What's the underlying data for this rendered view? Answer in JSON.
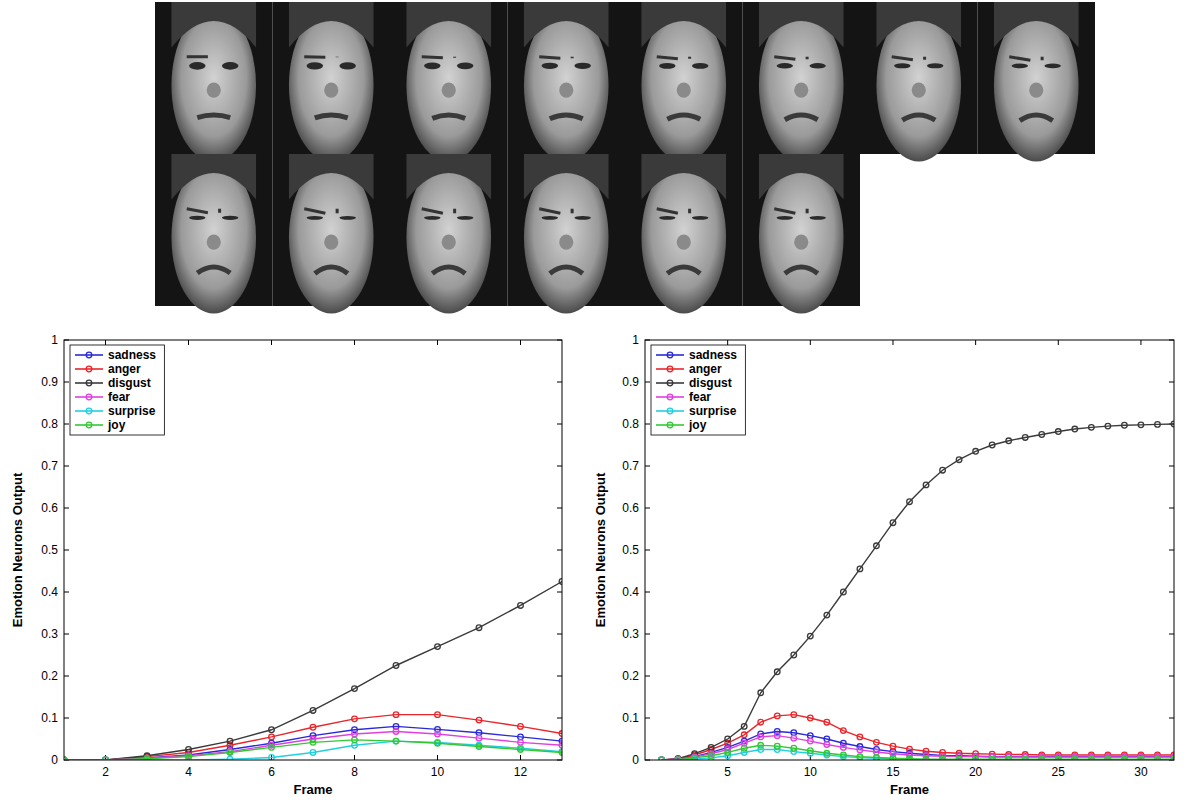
{
  "chart_data": [
    {
      "type": "line",
      "x_label": "Frame",
      "y_label": "Emotion Neurons Output",
      "x": [
        1,
        2,
        3,
        4,
        5,
        6,
        7,
        8,
        9,
        10,
        11,
        12,
        13
      ],
      "xlim": [
        1,
        13
      ],
      "xticks": [
        2,
        4,
        6,
        8,
        10,
        12
      ],
      "ylim": [
        0,
        1
      ],
      "yticks": [
        0,
        0.1,
        0.2,
        0.3,
        0.4,
        0.5,
        0.6,
        0.7,
        0.8,
        0.9,
        1
      ],
      "grid": false,
      "legend": "upper left",
      "marker": "o",
      "line_style": "solid",
      "series": [
        {
          "name": "sadness",
          "color": "#2a2ad8",
          "values": [
            0,
            0,
            0.005,
            0.012,
            0.025,
            0.04,
            0.058,
            0.072,
            0.08,
            0.073,
            0.065,
            0.055,
            0.045
          ]
        },
        {
          "name": "anger",
          "color": "#e8262b",
          "values": [
            0,
            0,
            0.008,
            0.018,
            0.035,
            0.055,
            0.078,
            0.098,
            0.108,
            0.108,
            0.095,
            0.08,
            0.063
          ]
        },
        {
          "name": "disgust",
          "color": "#3a3a3a",
          "values": [
            0,
            0,
            0.01,
            0.025,
            0.045,
            0.072,
            0.118,
            0.17,
            0.225,
            0.27,
            0.315,
            0.368,
            0.425
          ]
        },
        {
          "name": "fear",
          "color": "#e040e0",
          "values": [
            0,
            0,
            0.004,
            0.01,
            0.02,
            0.035,
            0.05,
            0.062,
            0.068,
            0.062,
            0.052,
            0.042,
            0.035
          ]
        },
        {
          "name": "surprise",
          "color": "#22cfe0",
          "values": [
            0,
            0,
            0,
            0,
            0.002,
            0.006,
            0.018,
            0.035,
            0.045,
            0.042,
            0.035,
            0.028,
            0.02
          ]
        },
        {
          "name": "joy",
          "color": "#33c833",
          "values": [
            0,
            0,
            0.003,
            0.008,
            0.018,
            0.03,
            0.042,
            0.048,
            0.045,
            0.04,
            0.032,
            0.025,
            0.018
          ]
        }
      ]
    },
    {
      "type": "line",
      "x_label": "Frame",
      "y_label": "Emotion Neurons Output",
      "x": [
        1,
        2,
        3,
        4,
        5,
        6,
        7,
        8,
        9,
        10,
        11,
        12,
        13,
        14,
        15,
        16,
        17,
        18,
        19,
        20,
        21,
        22,
        23,
        24,
        25,
        26,
        27,
        28,
        29,
        30,
        31,
        32
      ],
      "xlim": [
        0,
        32
      ],
      "xticks": [
        5,
        10,
        15,
        20,
        25,
        30
      ],
      "ylim": [
        0,
        1
      ],
      "yticks": [
        0,
        0.1,
        0.2,
        0.3,
        0.4,
        0.5,
        0.6,
        0.7,
        0.8,
        0.9,
        1
      ],
      "grid": false,
      "legend": "upper left",
      "marker": "o",
      "line_style": "solid",
      "series": [
        {
          "name": "sadness",
          "color": "#2a2ad8",
          "values": [
            0,
            0.002,
            0.008,
            0.018,
            0.03,
            0.045,
            0.062,
            0.068,
            0.065,
            0.058,
            0.05,
            0.04,
            0.032,
            0.025,
            0.02,
            0.016,
            0.013,
            0.011,
            0.01,
            0.009,
            0.008,
            0.008,
            0.008,
            0.008,
            0.008,
            0.008,
            0.008,
            0.008,
            0.008,
            0.008,
            0.008,
            0.008
          ]
        },
        {
          "name": "anger",
          "color": "#e8262b",
          "values": [
            0,
            0.003,
            0.012,
            0.025,
            0.04,
            0.06,
            0.09,
            0.105,
            0.108,
            0.1,
            0.09,
            0.07,
            0.055,
            0.042,
            0.033,
            0.026,
            0.021,
            0.018,
            0.016,
            0.015,
            0.014,
            0.013,
            0.013,
            0.012,
            0.012,
            0.012,
            0.012,
            0.012,
            0.012,
            0.012,
            0.012,
            0.012
          ]
        },
        {
          "name": "disgust",
          "color": "#3a3a3a",
          "values": [
            0,
            0.003,
            0.015,
            0.03,
            0.05,
            0.08,
            0.16,
            0.21,
            0.25,
            0.295,
            0.345,
            0.4,
            0.455,
            0.51,
            0.565,
            0.615,
            0.655,
            0.69,
            0.715,
            0.735,
            0.75,
            0.76,
            0.768,
            0.775,
            0.782,
            0.788,
            0.792,
            0.795,
            0.797,
            0.798,
            0.799,
            0.8
          ]
        },
        {
          "name": "fear",
          "color": "#e040e0",
          "values": [
            0,
            0.002,
            0.007,
            0.015,
            0.025,
            0.04,
            0.055,
            0.058,
            0.052,
            0.045,
            0.037,
            0.03,
            0.024,
            0.019,
            0.015,
            0.012,
            0.01,
            0.009,
            0.008,
            0.008,
            0.007,
            0.007,
            0.007,
            0.007,
            0.007,
            0.007,
            0.007,
            0.007,
            0.007,
            0.007,
            0.007,
            0.007
          ]
        },
        {
          "name": "surprise",
          "color": "#22cfe0",
          "values": [
            0,
            0,
            0.002,
            0.005,
            0.01,
            0.018,
            0.025,
            0.025,
            0.02,
            0.016,
            0.012,
            0.008,
            0.006,
            0.004,
            0.003,
            0.002,
            0.001,
            0.001,
            0.001,
            0.001,
            0.001,
            0.001,
            0.001,
            0.001,
            0.001,
            0.001,
            0.001,
            0.001,
            0.001,
            0.001,
            0.001,
            0.001
          ]
        },
        {
          "name": "joy",
          "color": "#33c833",
          "values": [
            0,
            0.001,
            0.005,
            0.01,
            0.018,
            0.028,
            0.035,
            0.033,
            0.028,
            0.022,
            0.016,
            0.012,
            0.008,
            0.006,
            0.004,
            0.003,
            0.002,
            0.002,
            0.002,
            0.002,
            0.002,
            0.002,
            0.002,
            0.002,
            0.002,
            0.002,
            0.002,
            0.002,
            0.002,
            0.002,
            0.002,
            0.002
          ]
        }
      ]
    }
  ]
}
